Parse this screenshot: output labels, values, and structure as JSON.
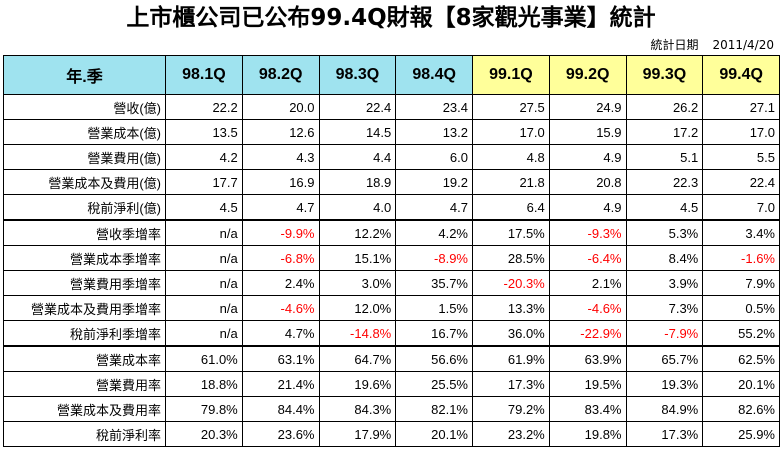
{
  "title": "上市櫃公司已公布99.4Q財報【8家觀光事業】統計",
  "date_label": "統計日期",
  "date_value": "2011/4/20",
  "header": {
    "label": "年.季",
    "columns": [
      "98.1Q",
      "98.2Q",
      "98.3Q",
      "98.4Q",
      "99.1Q",
      "99.2Q",
      "99.3Q",
      "99.4Q"
    ]
  },
  "rows": [
    {
      "label": "營收(億)",
      "values": [
        "22.2",
        "20.0",
        "22.4",
        "23.4",
        "27.5",
        "24.9",
        "26.2",
        "27.1"
      ]
    },
    {
      "label": "營業成本(億)",
      "values": [
        "13.5",
        "12.6",
        "14.5",
        "13.2",
        "17.0",
        "15.9",
        "17.2",
        "17.0"
      ]
    },
    {
      "label": "營業費用(億)",
      "values": [
        "4.2",
        "4.3",
        "4.4",
        "6.0",
        "4.8",
        "4.9",
        "5.1",
        "5.5"
      ]
    },
    {
      "label": "營業成本及費用(億)",
      "values": [
        "17.7",
        "16.9",
        "18.9",
        "19.2",
        "21.8",
        "20.8",
        "22.3",
        "22.4"
      ]
    },
    {
      "label": "稅前淨利(億)",
      "values": [
        "4.5",
        "4.7",
        "4.0",
        "4.7",
        "6.4",
        "4.9",
        "4.5",
        "7.0"
      ]
    },
    {
      "label": "營收季增率",
      "values": [
        "n/a",
        "-9.9%",
        "12.2%",
        "4.2%",
        "17.5%",
        "-9.3%",
        "5.3%",
        "3.4%"
      ]
    },
    {
      "label": "營業成本季增率",
      "values": [
        "n/a",
        "-6.8%",
        "15.1%",
        "-8.9%",
        "28.5%",
        "-6.4%",
        "8.4%",
        "-1.6%"
      ]
    },
    {
      "label": "營業費用季增率",
      "values": [
        "n/a",
        "2.4%",
        "3.0%",
        "35.7%",
        "-20.3%",
        "2.1%",
        "3.9%",
        "7.9%"
      ]
    },
    {
      "label": "營業成本及費用季增率",
      "values": [
        "n/a",
        "-4.6%",
        "12.0%",
        "1.5%",
        "13.3%",
        "-4.6%",
        "7.3%",
        "0.5%"
      ]
    },
    {
      "label": "稅前淨利季增率",
      "values": [
        "n/a",
        "4.7%",
        "-14.8%",
        "16.7%",
        "36.0%",
        "-22.9%",
        "-7.9%",
        "55.2%"
      ]
    },
    {
      "label": "營業成本率",
      "values": [
        "61.0%",
        "63.1%",
        "64.7%",
        "56.6%",
        "61.9%",
        "63.9%",
        "65.7%",
        "62.5%"
      ]
    },
    {
      "label": "營業費用率",
      "values": [
        "18.8%",
        "21.4%",
        "19.6%",
        "25.5%",
        "17.3%",
        "19.5%",
        "19.3%",
        "20.1%"
      ]
    },
    {
      "label": "營業成本及費用率",
      "values": [
        "79.8%",
        "84.4%",
        "84.3%",
        "82.1%",
        "79.2%",
        "83.4%",
        "84.9%",
        "82.6%"
      ]
    },
    {
      "label": "稅前淨利率",
      "values": [
        "20.3%",
        "23.6%",
        "17.9%",
        "20.1%",
        "23.2%",
        "19.8%",
        "17.3%",
        "25.9%"
      ]
    }
  ],
  "colors": {
    "header_prev_year": "#9fe3ef",
    "header_cur_year": "#ffff9a",
    "negative": "#ff0000"
  }
}
